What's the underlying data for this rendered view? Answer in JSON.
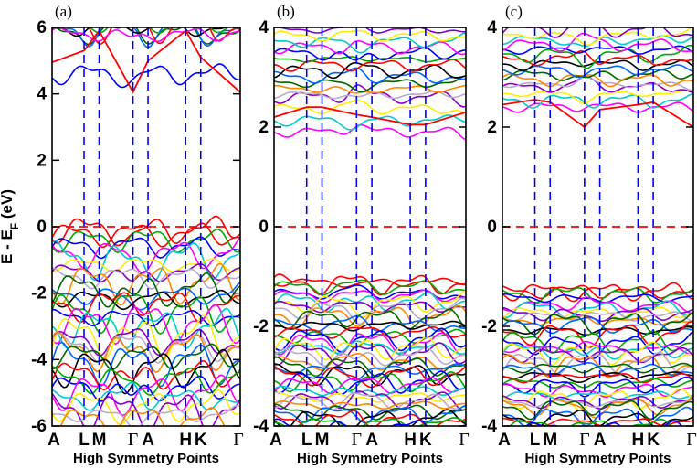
{
  "figure": {
    "ylabel": "E - E",
    "ylabel_sub": "F",
    "ylabel_unit": " (eV)"
  },
  "colors": {
    "fermi_line": "#ff0000",
    "sym_lines": "#0000ff",
    "bands": [
      "#000000",
      "#ff0000",
      "#00aa00",
      "#0000ff",
      "#ff00ff",
      "#00cccc",
      "#ffee00",
      "#8800cc",
      "#bbaacc",
      "#ff8800",
      "#006600",
      "#0066ff"
    ]
  },
  "chart_data": [
    {
      "type": "line",
      "panel_label": "(a)",
      "xlabel": "High Symmetry Points",
      "ylim": [
        -6,
        6
      ],
      "yticks": [
        -6,
        -4,
        -2,
        0,
        2,
        4,
        6
      ],
      "ytick_labels": [
        "-6",
        "-4",
        "-2",
        "0",
        "2",
        "4",
        "6"
      ],
      "kpoints": [
        "A",
        "L",
        "M",
        "Γ",
        "A",
        "H",
        "K",
        "Γ"
      ],
      "kpoint_x": [
        0,
        0.17,
        0.25,
        0.43,
        0.51,
        0.71,
        0.79,
        1.0
      ],
      "fermi_level": 0,
      "conduction_bands": [
        {
          "center": 5.95,
          "count": 5,
          "spread": 0.12
        },
        {
          "center": 5.2,
          "count": 2,
          "spread": 0.6
        }
      ],
      "valence_bands": {
        "top": -0.05,
        "bottom": -5.8,
        "count": 34
      },
      "highlight_band": [
        4.95,
        5.3,
        5.9,
        4.05,
        5.0,
        5.9,
        5.1,
        4.05
      ]
    },
    {
      "type": "line",
      "panel_label": "(b)",
      "xlabel": "High Symmetry Points",
      "ylim": [
        -4,
        4
      ],
      "yticks": [
        -4,
        -2,
        0,
        2,
        4
      ],
      "ytick_labels": [
        "-4",
        "-2",
        "0",
        "2",
        "4"
      ],
      "kpoints": [
        "A",
        "L",
        "M",
        "Γ",
        "A",
        "H",
        "K",
        "Γ"
      ],
      "kpoint_x": [
        0,
        0.17,
        0.25,
        0.43,
        0.51,
        0.71,
        0.79,
        1.0
      ],
      "fermi_level": 0,
      "conduction_bands": [
        {
          "center": 2.25,
          "count": 4,
          "spread": 0.35
        },
        {
          "center": 3.3,
          "count": 12,
          "spread": 0.65
        }
      ],
      "valence_bands": {
        "top": -1.05,
        "bottom": -4.0,
        "count": 40
      },
      "highlight_band": [
        2.2,
        2.4,
        2.4,
        2.25,
        2.2,
        2.05,
        2.05,
        2.3
      ]
    },
    {
      "type": "line",
      "panel_label": "(c)",
      "xlabel": "High Symmetry Points",
      "ylim": [
        -4,
        4
      ],
      "yticks": [
        -4,
        -2,
        0,
        2,
        4
      ],
      "ytick_labels": [
        "-4",
        "-2",
        "0",
        "2",
        "4"
      ],
      "kpoints": [
        "A",
        "L",
        "M",
        "Γ",
        "A",
        "H",
        "K",
        "Γ"
      ],
      "kpoint_x": [
        0,
        0.17,
        0.25,
        0.43,
        0.51,
        0.71,
        0.79,
        1.0
      ],
      "fermi_level": 0,
      "conduction_bands": [
        {
          "center": 2.6,
          "count": 4,
          "spread": 0.2
        },
        {
          "center": 3.4,
          "count": 12,
          "spread": 0.55
        }
      ],
      "valence_bands": {
        "top": -1.2,
        "bottom": -4.0,
        "count": 40
      },
      "highlight_band": [
        2.45,
        2.55,
        2.5,
        2.0,
        2.35,
        2.45,
        2.5,
        2.0
      ]
    }
  ]
}
